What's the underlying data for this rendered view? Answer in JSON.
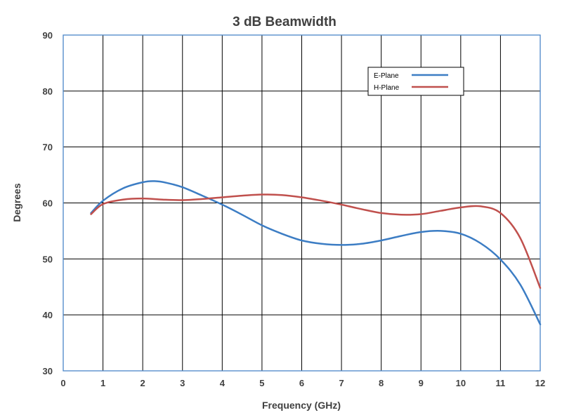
{
  "chart_data": {
    "type": "line",
    "title": "3 dB Beamwidth",
    "xlabel": "Frequency (GHz)",
    "ylabel": "Degrees",
    "xlim": [
      0,
      12
    ],
    "ylim": [
      30,
      90
    ],
    "x_ticks": [
      "0",
      "1",
      "2",
      "3",
      "4",
      "5",
      "6",
      "7",
      "8",
      "9",
      "10",
      "11",
      "12"
    ],
    "y_ticks": [
      "30",
      "40",
      "50",
      "60",
      "70",
      "80",
      "90"
    ],
    "grid": true,
    "legend_position": "top-right",
    "series": [
      {
        "name": "E-Plane",
        "color": "#3c7dc4",
        "x": [
          0.7,
          1.0,
          1.5,
          2.0,
          2.3,
          2.6,
          3.0,
          3.5,
          4.0,
          4.5,
          5.0,
          5.5,
          6.0,
          6.5,
          7.0,
          7.5,
          8.0,
          8.5,
          9.0,
          9.5,
          10.0,
          10.5,
          11.0,
          11.5,
          12.0
        ],
        "y": [
          58.2,
          60.4,
          62.6,
          63.7,
          63.9,
          63.6,
          62.8,
          61.3,
          59.7,
          57.9,
          56.0,
          54.5,
          53.3,
          52.7,
          52.5,
          52.7,
          53.3,
          54.1,
          54.8,
          55.0,
          54.5,
          52.8,
          49.9,
          45.4,
          38.3
        ]
      },
      {
        "name": "H-Plane",
        "color": "#c0504d",
        "x": [
          0.7,
          1.0,
          1.5,
          2.0,
          2.5,
          3.0,
          3.5,
          4.0,
          4.5,
          5.0,
          5.5,
          6.0,
          6.5,
          7.0,
          7.5,
          8.0,
          8.5,
          9.0,
          9.5,
          10.0,
          10.5,
          11.0,
          11.5,
          12.0
        ],
        "y": [
          58.0,
          59.8,
          60.6,
          60.8,
          60.6,
          60.5,
          60.7,
          61.0,
          61.3,
          61.5,
          61.4,
          61.0,
          60.4,
          59.7,
          58.9,
          58.2,
          57.9,
          58.0,
          58.6,
          59.2,
          59.4,
          58.2,
          53.7,
          44.8
        ]
      }
    ]
  }
}
